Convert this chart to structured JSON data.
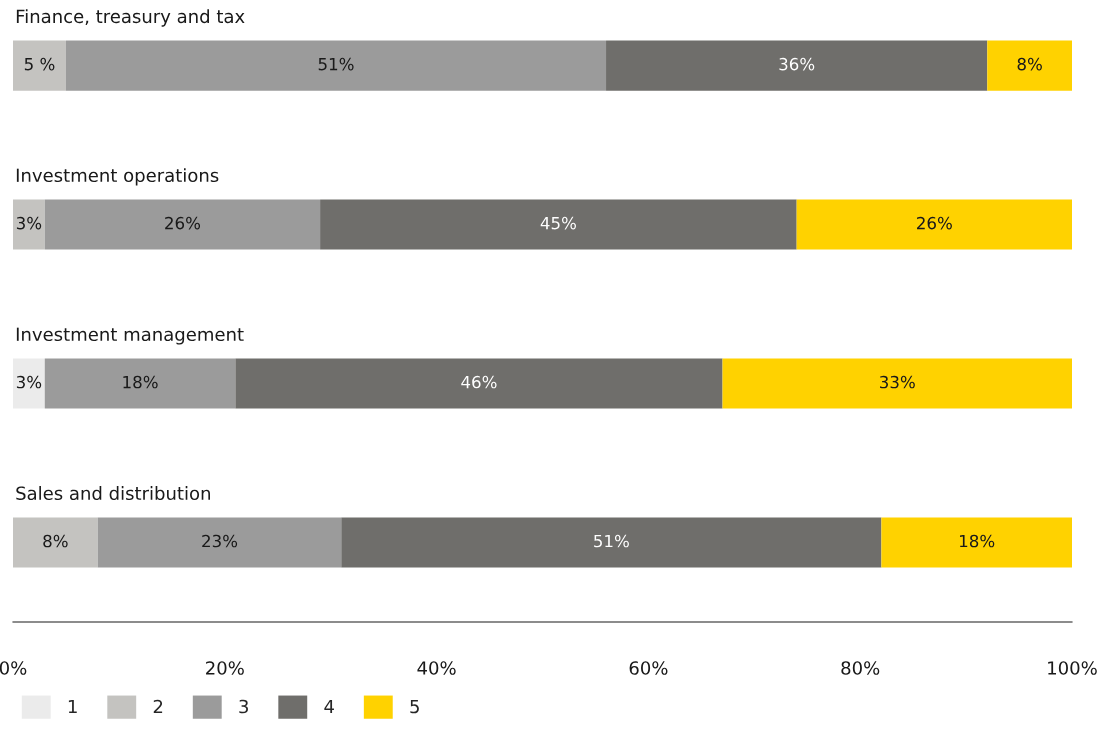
{
  "chart_data": {
    "type": "bar",
    "orientation": "horizontal",
    "stacked": true,
    "categories": [
      "Finance, treasury and tax",
      "Investment operations",
      "Investment management",
      "Sales and distribution"
    ],
    "series": [
      {
        "name": "1",
        "color": "#ebebeb",
        "values": [
          0,
          0,
          3,
          0
        ],
        "value_labels": [
          null,
          null,
          "3%",
          null
        ]
      },
      {
        "name": "2",
        "color": "#c4c3c0",
        "values": [
          5,
          3,
          0,
          8
        ],
        "value_labels": [
          "5 %",
          "3%",
          null,
          "8%"
        ]
      },
      {
        "name": "3",
        "color": "#9b9b9b",
        "values": [
          51,
          26,
          18,
          23
        ],
        "value_labels": [
          "51%",
          "26%",
          "18%",
          "23%"
        ]
      },
      {
        "name": "4",
        "color": "#6f6e6b",
        "values": [
          36,
          45,
          46,
          51
        ],
        "value_labels": [
          "36%",
          "45%",
          "46%",
          "51%"
        ]
      },
      {
        "name": "5",
        "color": "#ffd200",
        "values": [
          8,
          26,
          33,
          18
        ],
        "value_labels": [
          "8%",
          "26%",
          "33%",
          "18%"
        ]
      }
    ],
    "xlim": [
      0,
      100
    ],
    "xticks": [
      {
        "value": 0,
        "label": "0%"
      },
      {
        "value": 20,
        "label": "20%"
      },
      {
        "value": 40,
        "label": "40%"
      },
      {
        "value": 60,
        "label": "60%"
      },
      {
        "value": 80,
        "label": "80%"
      },
      {
        "value": 100,
        "label": "100%"
      }
    ],
    "tick_labels": "x",
    "grid": false,
    "legend": "bottom left"
  }
}
